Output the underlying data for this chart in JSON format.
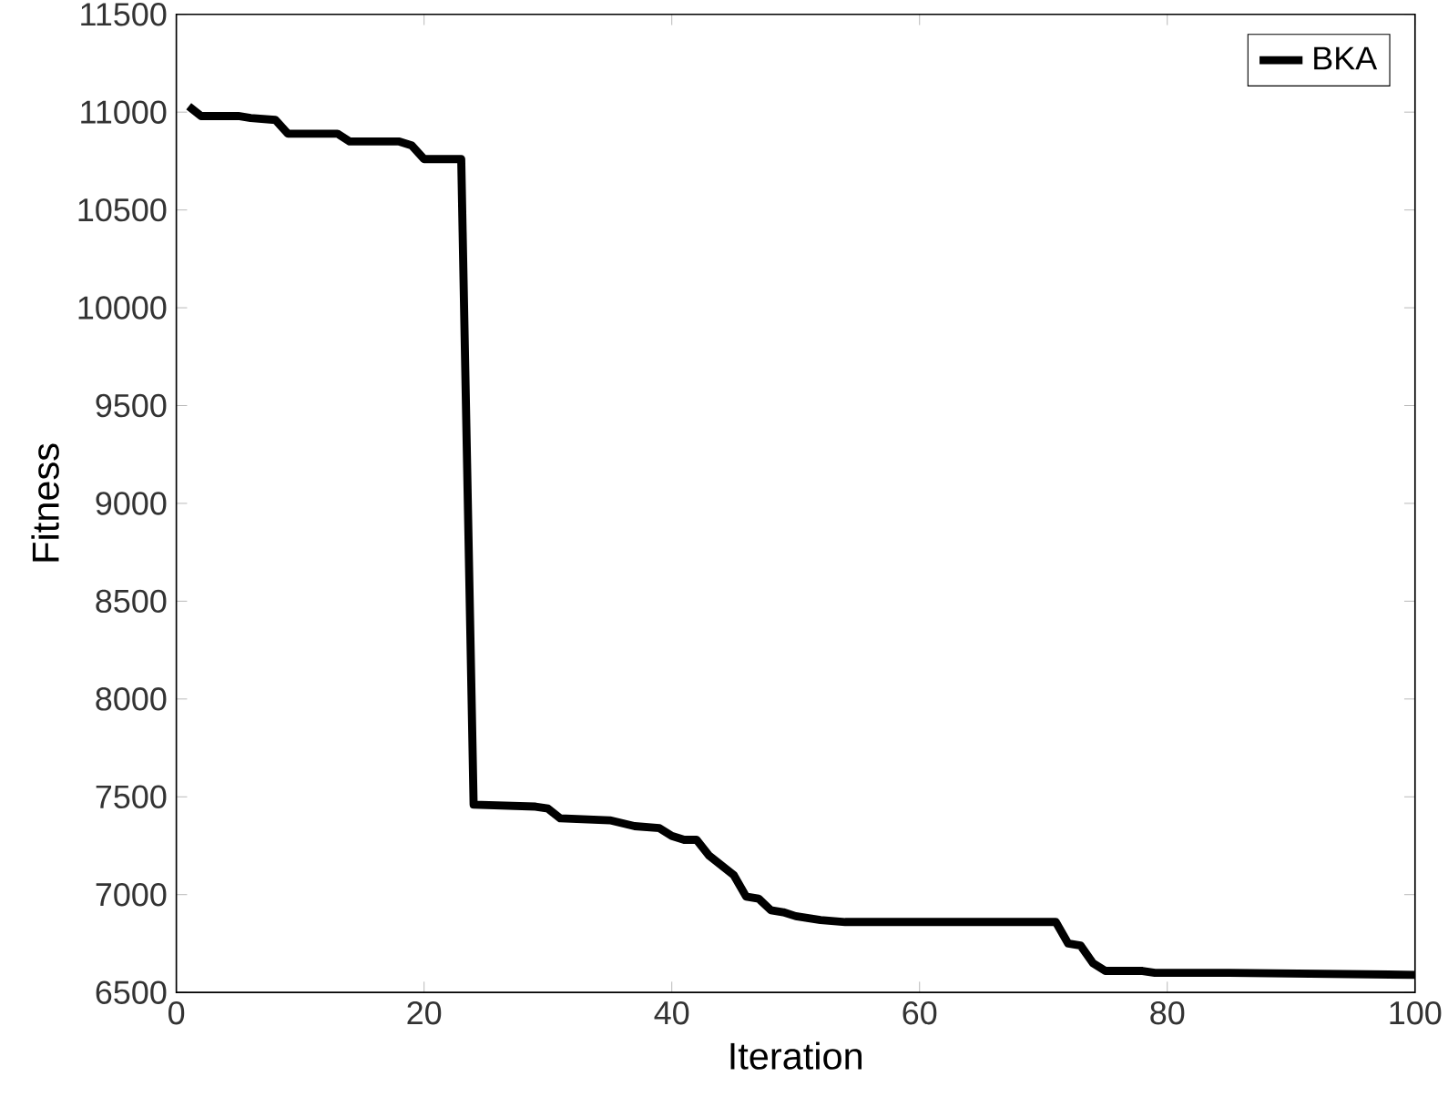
{
  "chart_data": {
    "type": "line",
    "xlabel": "Iteration",
    "ylabel": "Fitness",
    "xlim": [
      0,
      100
    ],
    "xticks": [
      0,
      20,
      40,
      60,
      80,
      100
    ],
    "ylim": [
      6500,
      11500
    ],
    "yticks": [
      6500,
      7000,
      7500,
      8000,
      8500,
      9000,
      9500,
      10000,
      10500,
      11000,
      11500
    ],
    "x": [
      1,
      2,
      5,
      6,
      8,
      9,
      13,
      14,
      18,
      19,
      20,
      23,
      24,
      29,
      30,
      31,
      35,
      37,
      39,
      40,
      41,
      42,
      43,
      45,
      46,
      47,
      48,
      49,
      50,
      52,
      54,
      71,
      72,
      73,
      74,
      75,
      78,
      79,
      85,
      100
    ],
    "series": [
      {
        "name": "BKA",
        "color": "#000000",
        "values": [
          11030,
          10980,
          10980,
          10970,
          10960,
          10890,
          10890,
          10850,
          10850,
          10830,
          10760,
          10760,
          7460,
          7450,
          7440,
          7390,
          7380,
          7350,
          7340,
          7300,
          7280,
          7280,
          7200,
          7100,
          6990,
          6980,
          6920,
          6910,
          6890,
          6870,
          6860,
          6860,
          6750,
          6740,
          6650,
          6610,
          6610,
          6600,
          6600,
          6590
        ]
      }
    ],
    "legend": "top right",
    "grid": false,
    "marker": "none",
    "line_style": "solid"
  }
}
